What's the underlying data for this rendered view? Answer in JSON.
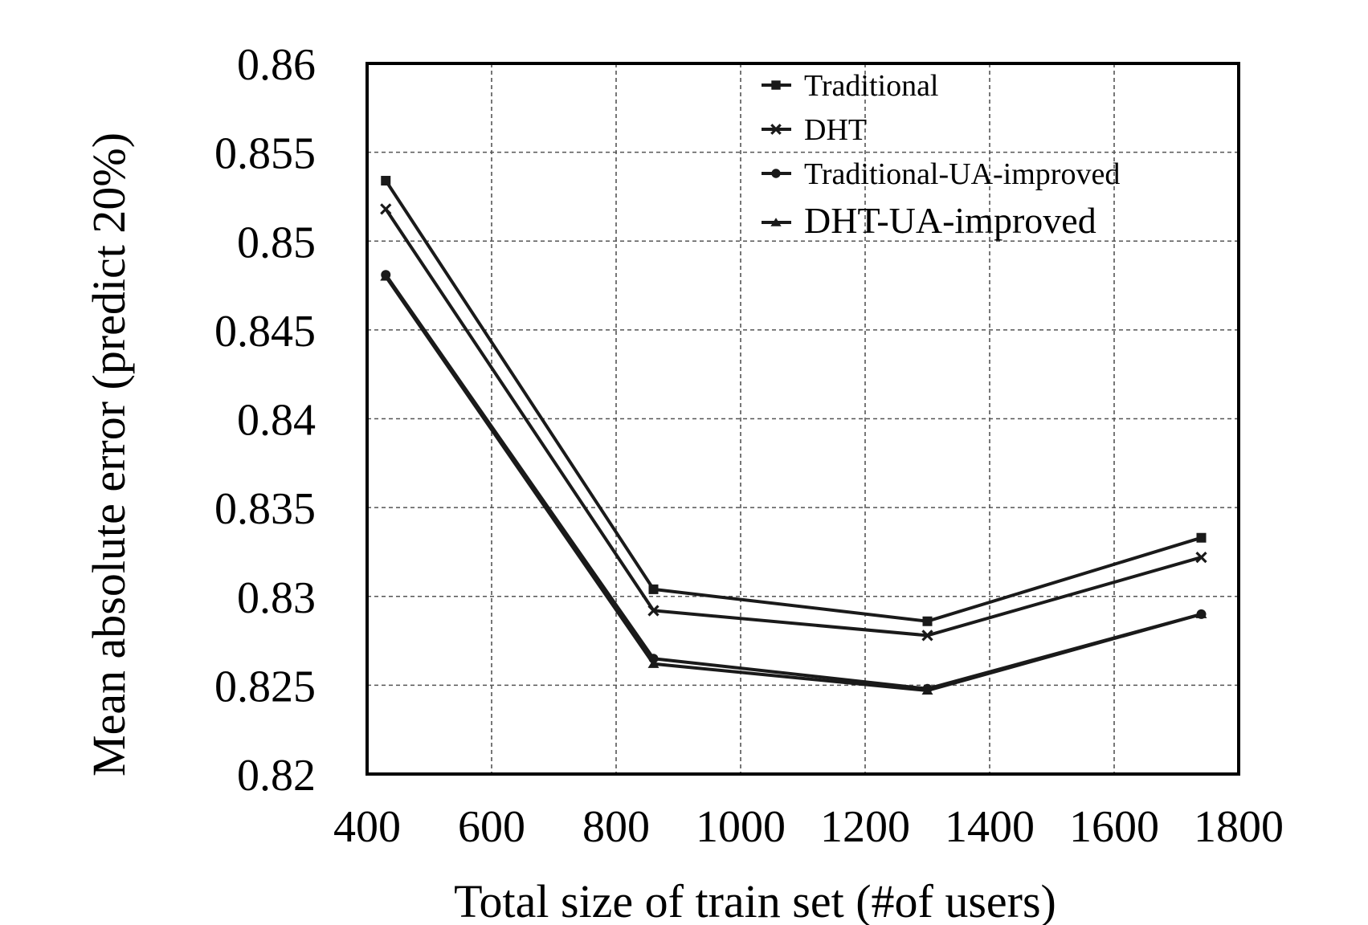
{
  "chart_data": {
    "type": "line",
    "title": "",
    "xlabel": "Total size of train set (#of users)",
    "ylabel": "Mean absolute error (predict 20%)",
    "xlim": [
      400,
      1800
    ],
    "ylim": [
      0.82,
      0.86
    ],
    "xticks": [
      400,
      600,
      800,
      1000,
      1200,
      1400,
      1600,
      1800
    ],
    "xtick_labels": [
      "400",
      "600",
      "800",
      "1000",
      "1200",
      "1400",
      "1600",
      "1800"
    ],
    "yticks": [
      0.82,
      0.825,
      0.83,
      0.835,
      0.84,
      0.845,
      0.85,
      0.855,
      0.86
    ],
    "ytick_labels": [
      "0.82",
      "0.825",
      "0.83",
      "0.835",
      "0.84",
      "0.845",
      "0.85",
      "0.855",
      "0.86"
    ],
    "grid": true,
    "legend_position": "top-right",
    "x": [
      430,
      860,
      1300,
      1740
    ],
    "series": [
      {
        "name": "Traditional",
        "marker": "square",
        "values": [
          0.8534,
          0.8304,
          0.8286,
          0.8333
        ]
      },
      {
        "name": "DHT",
        "marker": "x",
        "values": [
          0.8518,
          0.8292,
          0.8278,
          0.8322
        ]
      },
      {
        "name": "Traditional-UA-improved",
        "marker": "circle",
        "values": [
          0.8481,
          0.8265,
          0.8248,
          0.829
        ]
      },
      {
        "name": "DHT-UA-improved",
        "marker": "triangle",
        "values": [
          0.848,
          0.8262,
          0.8247,
          0.829
        ]
      }
    ],
    "colors": {
      "line": "#1a1a1a",
      "grid": "#555555",
      "frame": "#000000"
    }
  }
}
